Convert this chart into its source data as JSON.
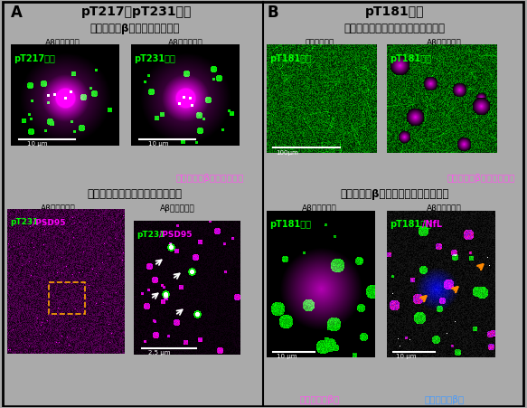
{
  "panel_A_label": "A",
  "panel_B_label": "B",
  "panel_A_title": "pT217，pT231タウ",
  "panel_B_title": "pT181タウ",
  "sec_A_top": "アミロイドβ斑形成に伴い出現",
  "sec_A_bot": "興奮性神経にシナプス後部に存在",
  "sec_B_top": "正常な神経細胞の軸索に豊富に存在",
  "sec_B_bot": "アミロイドβ斑周囲では変性様を示す",
  "lbl_ab": "Aβ病理モデル",
  "lbl_wt": "野生型マウス",
  "lbl_pT217": "pT217タウ",
  "lbl_pT231": "pT231タウ",
  "lbl_pT231_PSD_g": "pT231",
  "lbl_pT231_PSD_m": "/PSD95",
  "lbl_pT181": "pT181タウ",
  "lbl_pT181_g": "pT181タウ",
  "lbl_pT181_nfl_g": "pT181タウ",
  "lbl_pT181_nfl_m": "/NfL",
  "cap_amyloid_pink": "アミロイドβ斑（ピンク）",
  "cap_amyloid": "アミロイドβ斑",
  "scale_10": "10 μm",
  "scale_100": "100μm",
  "scale_2_5": "2.5 μm",
  "green": "#00ff00",
  "magenta": "#ff00ff",
  "pink": "#ff55ee",
  "blue_cap": "#4499ff",
  "orange": "#ff8800",
  "white": "#ffffff",
  "black": "#000000",
  "gray_bg": "#aaaaaa"
}
